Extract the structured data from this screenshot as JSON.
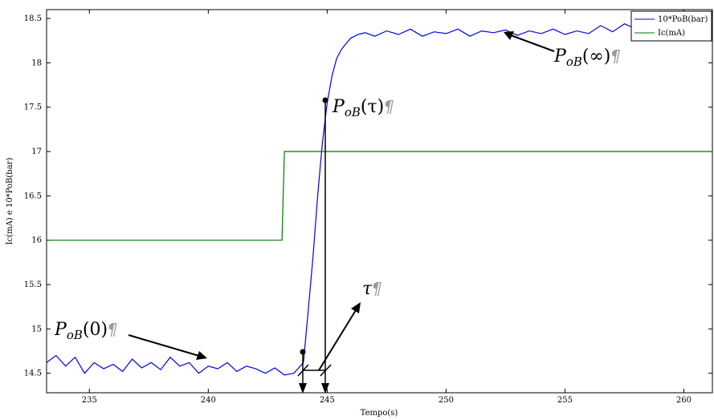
{
  "chart_data": {
    "type": "line",
    "xlabel": "Tempo(s)",
    "ylabel": "Ic(mA) e 10*PoB(bar)",
    "xlim": [
      233.2,
      261.2
    ],
    "ylim": [
      14.28,
      18.6
    ],
    "xticks": [
      235,
      240,
      245,
      250,
      255,
      260
    ],
    "yticks": [
      14.5,
      15,
      15.5,
      16,
      16.5,
      17,
      17.5,
      18,
      18.5
    ],
    "legend_placement": "top-right",
    "series": [
      {
        "name": "10*PoB(bar)",
        "color": "#0000ee",
        "x": [
          233.2,
          233.6,
          234.0,
          234.4,
          234.8,
          235.2,
          235.6,
          236.0,
          236.4,
          236.8,
          237.2,
          237.6,
          238.0,
          238.4,
          238.8,
          239.2,
          239.6,
          240.0,
          240.4,
          240.8,
          241.2,
          241.6,
          242.0,
          242.4,
          242.8,
          243.2,
          243.6,
          244.0,
          244.2,
          244.4,
          244.6,
          244.8,
          245.0,
          245.2,
          245.4,
          245.6,
          245.8,
          246.0,
          246.3,
          246.6,
          247.0,
          247.5,
          248.0,
          248.5,
          249.0,
          249.5,
          250.0,
          250.5,
          251.0,
          251.5,
          252.0,
          252.5,
          253.0,
          253.5,
          254.0,
          254.5,
          255.0,
          255.5,
          256.0,
          256.5,
          257.0,
          257.5,
          258.0,
          258.5,
          259.0,
          259.5,
          260.0,
          260.5,
          261.2
        ],
        "values": [
          14.62,
          14.7,
          14.58,
          14.68,
          14.5,
          14.62,
          14.55,
          14.6,
          14.52,
          14.66,
          14.56,
          14.62,
          14.54,
          14.68,
          14.58,
          14.62,
          14.5,
          14.58,
          14.55,
          14.62,
          14.52,
          14.58,
          14.55,
          14.5,
          14.56,
          14.48,
          14.5,
          14.62,
          15.2,
          15.8,
          16.5,
          17.1,
          17.55,
          17.85,
          18.05,
          18.15,
          18.22,
          18.28,
          18.32,
          18.34,
          18.3,
          18.36,
          18.32,
          18.38,
          18.3,
          18.35,
          18.33,
          18.38,
          18.3,
          18.36,
          18.34,
          18.37,
          18.31,
          18.36,
          18.33,
          18.38,
          18.32,
          18.36,
          18.33,
          18.42,
          18.35,
          18.44,
          18.38,
          18.45,
          18.4,
          18.46,
          18.42,
          18.48,
          18.45
        ]
      },
      {
        "name": "Ic(mA)",
        "color": "#007700",
        "x": [
          233.2,
          243.1,
          243.2,
          261.2
        ],
        "values": [
          16.0,
          16.0,
          17.0,
          17.0
        ]
      }
    ],
    "annotations": [
      {
        "id": "p0",
        "base": "P",
        "sub": "oB",
        "arg": "(0)",
        "mark": "¶",
        "point": {
          "x": 240.2,
          "y": 14.58
        }
      },
      {
        "id": "ptau",
        "base": "P",
        "sub": "oB",
        "arg": "(τ)",
        "mark": "¶",
        "point": {
          "x": 245.0,
          "y": 17.55
        }
      },
      {
        "id": "pinf",
        "base": "P",
        "sub": "oB",
        "arg": "(∞)",
        "mark": "¶",
        "point": {
          "x": 252.5,
          "y": 18.33
        }
      },
      {
        "id": "tau",
        "base": "τ",
        "sub": "",
        "arg": "",
        "mark": "¶"
      }
    ]
  }
}
